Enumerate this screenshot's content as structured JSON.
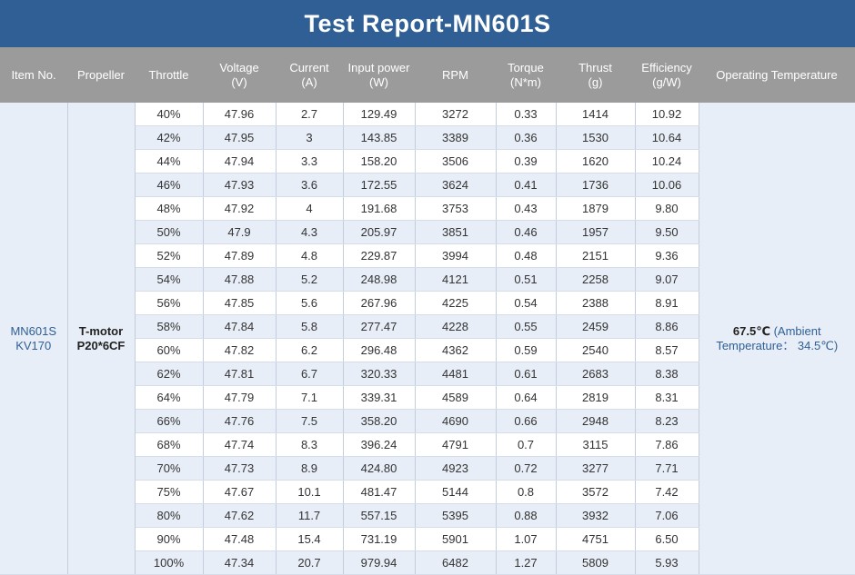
{
  "title": "Test Report-MN601S",
  "headers": [
    {
      "label": "Item No.",
      "unit": ""
    },
    {
      "label": "Propeller",
      "unit": ""
    },
    {
      "label": "Throttle",
      "unit": ""
    },
    {
      "label": "Voltage",
      "unit": "(V)"
    },
    {
      "label": "Current",
      "unit": "(A)"
    },
    {
      "label": "Input power",
      "unit": "(W)"
    },
    {
      "label": "RPM",
      "unit": ""
    },
    {
      "label": "Torque",
      "unit": "(N*m)"
    },
    {
      "label": "Thrust",
      "unit": "(g)"
    },
    {
      "label": "Efficiency",
      "unit": "(g/W)"
    },
    {
      "label": "Operating Temperature",
      "unit": ""
    }
  ],
  "item_no": {
    "line1": "MN601S",
    "line2": "KV170"
  },
  "propeller": {
    "line1": "T-motor",
    "line2": "P20*6CF"
  },
  "operating_temperature": {
    "value": "67.5℃",
    "ambient_line1": "(Ambient",
    "ambient_line2": "Temperature： 34.5℃)"
  },
  "rows": [
    [
      "40%",
      "47.96",
      "2.7",
      "129.49",
      "3272",
      "0.33",
      "1414",
      "10.92"
    ],
    [
      "42%",
      "47.95",
      "3",
      "143.85",
      "3389",
      "0.36",
      "1530",
      "10.64"
    ],
    [
      "44%",
      "47.94",
      "3.3",
      "158.20",
      "3506",
      "0.39",
      "1620",
      "10.24"
    ],
    [
      "46%",
      "47.93",
      "3.6",
      "172.55",
      "3624",
      "0.41",
      "1736",
      "10.06"
    ],
    [
      "48%",
      "47.92",
      "4",
      "191.68",
      "3753",
      "0.43",
      "1879",
      "9.80"
    ],
    [
      "50%",
      "47.9",
      "4.3",
      "205.97",
      "3851",
      "0.46",
      "1957",
      "9.50"
    ],
    [
      "52%",
      "47.89",
      "4.8",
      "229.87",
      "3994",
      "0.48",
      "2151",
      "9.36"
    ],
    [
      "54%",
      "47.88",
      "5.2",
      "248.98",
      "4121",
      "0.51",
      "2258",
      "9.07"
    ],
    [
      "56%",
      "47.85",
      "5.6",
      "267.96",
      "4225",
      "0.54",
      "2388",
      "8.91"
    ],
    [
      "58%",
      "47.84",
      "5.8",
      "277.47",
      "4228",
      "0.55",
      "2459",
      "8.86"
    ],
    [
      "60%",
      "47.82",
      "6.2",
      "296.48",
      "4362",
      "0.59",
      "2540",
      "8.57"
    ],
    [
      "62%",
      "47.81",
      "6.7",
      "320.33",
      "4481",
      "0.61",
      "2683",
      "8.38"
    ],
    [
      "64%",
      "47.79",
      "7.1",
      "339.31",
      "4589",
      "0.64",
      "2819",
      "8.31"
    ],
    [
      "66%",
      "47.76",
      "7.5",
      "358.20",
      "4690",
      "0.66",
      "2948",
      "8.23"
    ],
    [
      "68%",
      "47.74",
      "8.3",
      "396.24",
      "4791",
      "0.7",
      "3115",
      "7.86"
    ],
    [
      "70%",
      "47.73",
      "8.9",
      "424.80",
      "4923",
      "0.72",
      "3277",
      "7.71"
    ],
    [
      "75%",
      "47.67",
      "10.1",
      "481.47",
      "5144",
      "0.8",
      "3572",
      "7.42"
    ],
    [
      "80%",
      "47.62",
      "11.7",
      "557.15",
      "5395",
      "0.88",
      "3932",
      "7.06"
    ],
    [
      "90%",
      "47.48",
      "15.4",
      "731.19",
      "5901",
      "1.07",
      "4751",
      "6.50"
    ],
    [
      "100%",
      "47.34",
      "20.7",
      "979.94",
      "6482",
      "1.27",
      "5809",
      "5.93"
    ]
  ],
  "colors": {
    "header_bar": "#2f5f94",
    "column_header": "#9b9b9b",
    "row_alt": "#e8eef7",
    "accent_text": "#2f5f94"
  }
}
